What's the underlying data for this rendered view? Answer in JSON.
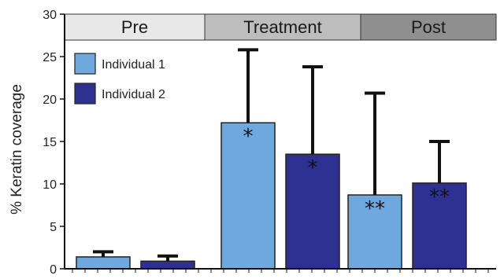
{
  "chart_data": {
    "type": "bar",
    "ylabel": "% Keratin coverage",
    "ylim": [
      0,
      30
    ],
    "yticks": [
      0,
      5,
      10,
      15,
      20,
      25,
      30
    ],
    "grid": false,
    "legend_position": "top-left",
    "phases": [
      {
        "label": "Pre",
        "color": "#e8e8e8",
        "start_group": 0,
        "end_group": 0
      },
      {
        "label": "Treatment",
        "color": "#bdbdbd",
        "start_group": 1,
        "end_group": 1
      },
      {
        "label": "Post",
        "color": "#8f8f8f",
        "start_group": 2,
        "end_group": 2
      }
    ],
    "groups": [
      "Pre",
      "Treatment",
      "Post"
    ],
    "series": [
      {
        "name": "Individual 1",
        "color": "#6fa8dc",
        "values": [
          1.4,
          17.2,
          8.7
        ],
        "errors": [
          0.6,
          8.6,
          12.0
        ],
        "annotations": [
          "",
          "*",
          "**"
        ]
      },
      {
        "name": "Individual 2",
        "color": "#2e3192",
        "values": [
          0.9,
          13.5,
          10.1
        ],
        "errors": [
          0.6,
          10.3,
          4.9
        ],
        "annotations": [
          "",
          "*",
          "**"
        ]
      }
    ]
  }
}
